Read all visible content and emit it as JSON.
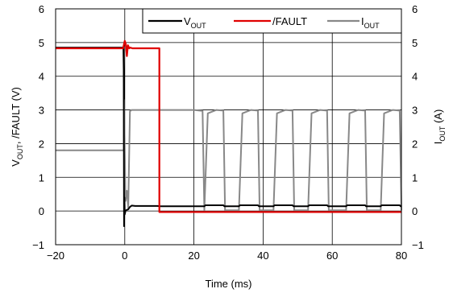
{
  "chart_data": {
    "type": "line",
    "title": "",
    "xlabel": "Time (ms)",
    "ylabel_left": "V_OUT, /FAULT (V)",
    "ylabel_right": "I_OUT (A)",
    "xlim": [
      -20,
      80
    ],
    "ylim_left": [
      -1,
      6
    ],
    "ylim_right": [
      -1,
      6
    ],
    "x_ticks": [
      -20,
      0,
      20,
      40,
      60,
      80
    ],
    "x_tick_labels": [
      "−20",
      "0",
      "20",
      "40",
      "60",
      "80"
    ],
    "y_ticks": [
      -1,
      0,
      1,
      2,
      3,
      4,
      5,
      6
    ],
    "y_tick_labels": [
      "−1",
      "0",
      "1",
      "2",
      "3",
      "4",
      "5",
      "6"
    ],
    "grid": true,
    "legend_position": "top-right",
    "legend": [
      {
        "main": "V",
        "sub": "OUT",
        "color": "#000000"
      },
      {
        "main": "/FAULT",
        "sub": "",
        "color": "#e00000"
      },
      {
        "main": "I",
        "sub": "OUT",
        "color": "#888888"
      }
    ],
    "series": [
      {
        "name": "VOUT",
        "color": "#000000",
        "x": [
          -20,
          -0.4,
          -0.3,
          -0.2,
          -0.1,
          0,
          0.2,
          0.5,
          1,
          1.5,
          2,
          3,
          9.5,
          10,
          23,
          23.3,
          28.5,
          28.8,
          33,
          33.3,
          38.5,
          38.8,
          43,
          43.3,
          48.5,
          48.8,
          53,
          53.3,
          58.5,
          58.8,
          64,
          64.3,
          69.5,
          69.8,
          74,
          74.3,
          79.5,
          79.8,
          80
        ],
        "y": [
          4.85,
          4.85,
          4.2,
          -0.45,
          0.4,
          -0.1,
          0.0,
          0.03,
          0.05,
          0.12,
          0.16,
          0.15,
          0.15,
          0.14,
          0.14,
          0.17,
          0.17,
          0.14,
          0.14,
          0.17,
          0.17,
          0.14,
          0.14,
          0.17,
          0.17,
          0.14,
          0.14,
          0.17,
          0.17,
          0.14,
          0.14,
          0.17,
          0.17,
          0.14,
          0.14,
          0.17,
          0.17,
          0.14,
          0.14
        ]
      },
      {
        "name": "/FAULT",
        "color": "#e00000",
        "x": [
          -20,
          -0.5,
          0,
          0.3,
          0.6,
          0.9,
          1.3,
          1.6,
          2.2,
          10,
          10,
          80
        ],
        "y": [
          4.83,
          4.83,
          5.05,
          4.95,
          4.6,
          4.92,
          4.83,
          4.85,
          4.83,
          4.83,
          -0.03,
          -0.03
        ]
      },
      {
        "name": "IOUT",
        "color": "#888888",
        "x": [
          -20,
          -0.3,
          -0.2,
          0.2,
          0.6,
          1.0,
          1.5,
          2.0,
          2.5,
          20,
          22.5,
          23,
          24,
          26.5,
          28.5,
          29,
          33,
          34,
          36.5,
          38.5,
          39,
          43,
          44,
          46.5,
          48.5,
          49,
          53,
          54,
          56.5,
          58.5,
          59,
          64,
          65,
          67.5,
          69.5,
          70,
          74,
          75,
          77.5,
          79.5,
          80
        ],
        "y": [
          1.8,
          1.8,
          3.3,
          0.3,
          0.6,
          0.1,
          2.96,
          3.0,
          3.0,
          3.0,
          2.97,
          0.02,
          2.9,
          3.0,
          2.98,
          0.02,
          0.02,
          2.9,
          3.0,
          2.98,
          0.02,
          0.02,
          2.9,
          3.0,
          2.98,
          0.02,
          0.02,
          2.9,
          3.0,
          2.98,
          0.02,
          0.02,
          2.9,
          3.0,
          2.98,
          0.02,
          0.02,
          2.9,
          3.0,
          2.98,
          0.02
        ]
      }
    ]
  }
}
